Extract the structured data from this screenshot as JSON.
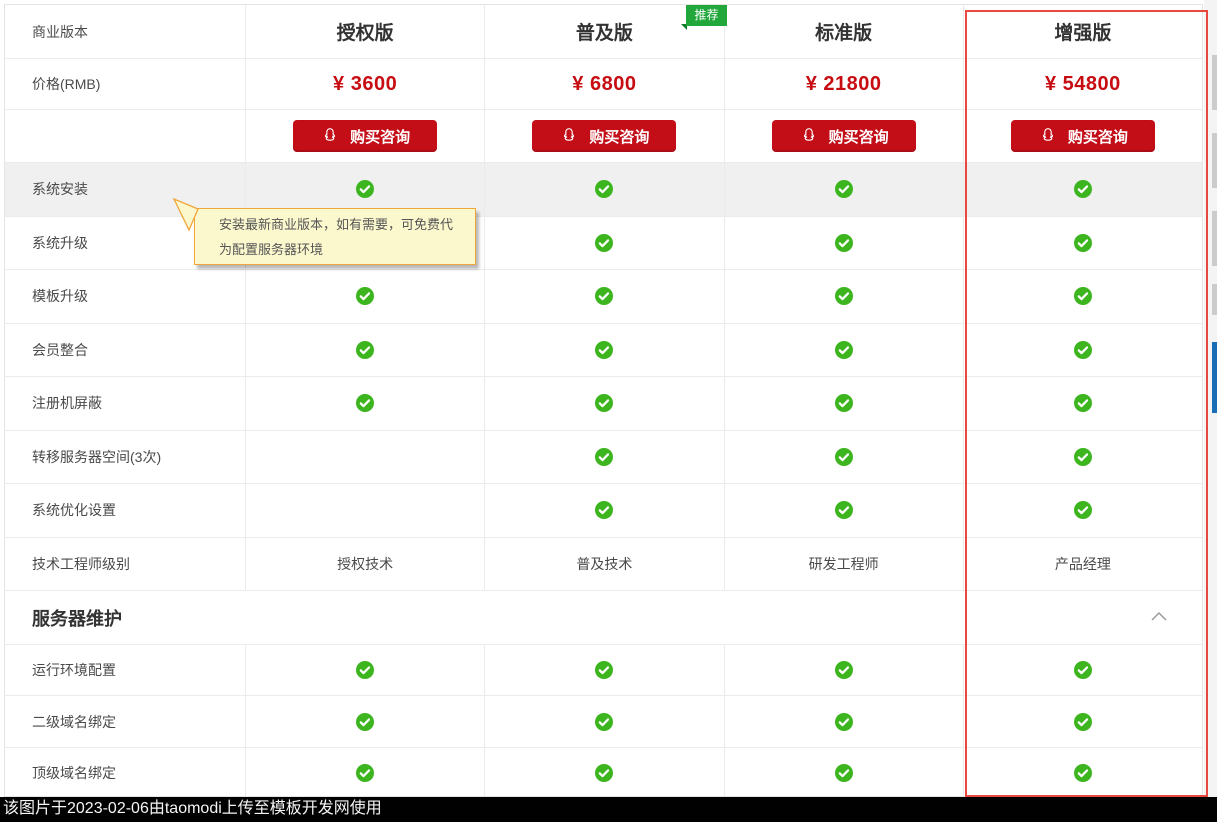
{
  "pricing_table": {
    "corner_header": "商业版本",
    "price_row_label": "价格(RMB)",
    "recommend_badge_label": "推荐",
    "buy_button_label": "购买咨询",
    "plans": [
      {
        "name": "授权版",
        "price": "¥ 3600",
        "recommended": false,
        "highlighted": false
      },
      {
        "name": "普及版",
        "price": "¥ 6800",
        "recommended": true,
        "highlighted": false
      },
      {
        "name": "标准版",
        "price": "¥ 21800",
        "recommended": false,
        "highlighted": false
      },
      {
        "name": "增强版",
        "price": "¥ 54800",
        "recommended": false,
        "highlighted": true
      }
    ],
    "feature_rows": [
      {
        "label": "系统安装",
        "values": [
          "check",
          "check",
          "check",
          "check"
        ]
      },
      {
        "label": "系统升级",
        "values": [
          "check",
          "check",
          "check",
          "check"
        ]
      },
      {
        "label": "模板升级",
        "values": [
          "check",
          "check",
          "check",
          "check"
        ]
      },
      {
        "label": "会员整合",
        "values": [
          "check",
          "check",
          "check",
          "check"
        ]
      },
      {
        "label": "注册机屏蔽",
        "values": [
          "check",
          "check",
          "check",
          "check"
        ]
      },
      {
        "label": "转移服务器空间(3次)",
        "values": [
          "",
          "check",
          "check",
          "check"
        ]
      },
      {
        "label": "系统优化设置",
        "values": [
          "",
          "check",
          "check",
          "check"
        ]
      },
      {
        "label": "技术工程师级别",
        "values": [
          "授权技术",
          "普及技术",
          "研发工程师",
          "产品经理"
        ]
      }
    ],
    "section_header": {
      "title": "服务器维护",
      "collapse_icon": "chevron-up-icon",
      "state": "expanded"
    },
    "section_rows": [
      {
        "label": "运行环境配置",
        "values": [
          "check",
          "check",
          "check",
          "check"
        ]
      },
      {
        "label": "二级域名绑定",
        "values": [
          "check",
          "check",
          "check",
          "check"
        ]
      },
      {
        "label": "顶级域名绑定",
        "values": [
          "check",
          "check",
          "check",
          "check"
        ]
      }
    ],
    "tooltip": {
      "text": "安装最新商业版本，如有需要，可免费代为配置服务器环境"
    }
  },
  "watermark_bar": {
    "text": "该图片于2023-02-06由taomodi上传至模板开发网使用"
  },
  "icons": {
    "buy_button_icon": "qq-penguin-icon",
    "cell_check_icon": "green-check-icon",
    "section_collapse_icon": "chevron-up-icon"
  },
  "colors": {
    "price_red": "#c70d12",
    "button_red": "#c30d17",
    "highlight_border_red": "#e8483f",
    "badge_green": "#21a73a",
    "check_green": "#3db51f",
    "tooltip_bg": "#fcf8ce",
    "tooltip_border": "#f0a63a",
    "hover_row_bg": "#f0f0f1",
    "watermark_bg": "#010101",
    "edge_blue": "#1a6db4"
  }
}
